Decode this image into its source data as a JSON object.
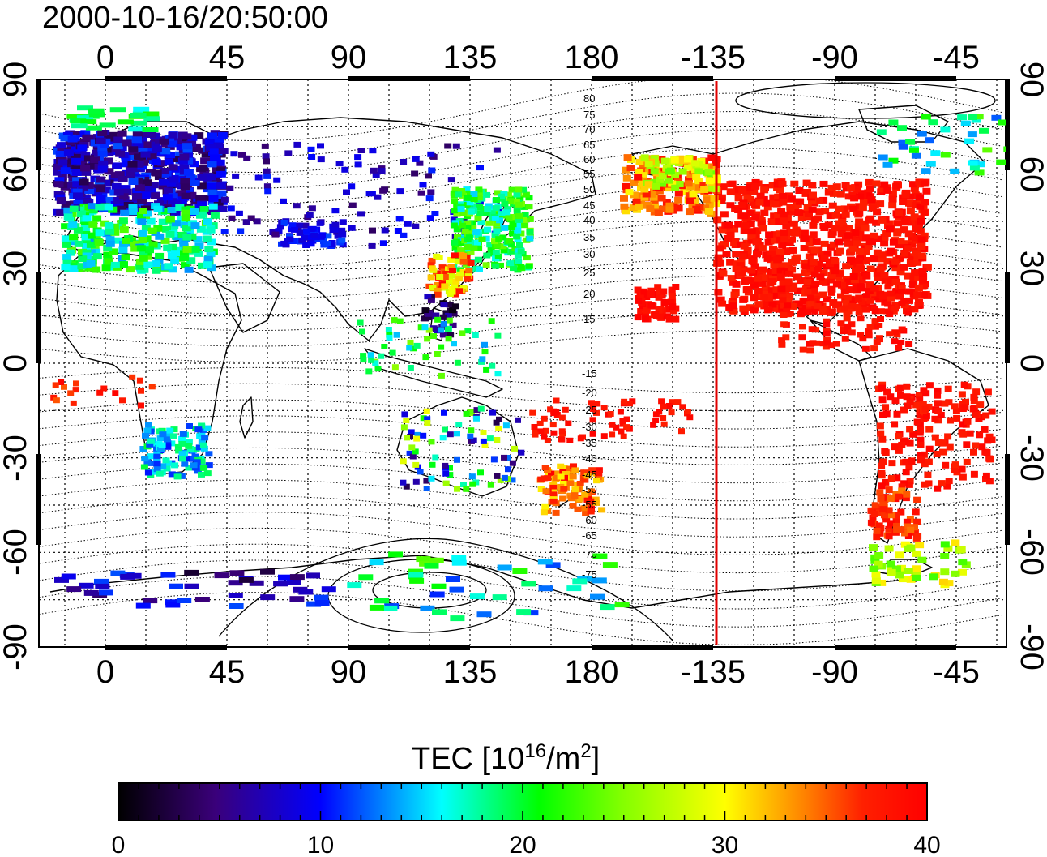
{
  "title": "2000-10-16/20:50:00",
  "map": {
    "lon_ticks_top": [
      "0",
      "45",
      "90",
      "135",
      "180",
      "-135",
      "-90",
      "-45"
    ],
    "lon_ticks_bottom": [
      "0",
      "45",
      "90",
      "135",
      "180",
      "-135",
      "-90",
      "-45"
    ],
    "lat_ticks_left": [
      "90",
      "60",
      "30",
      "0",
      "-30",
      "-60",
      "-90"
    ],
    "lat_ticks_right": [
      "90",
      "60",
      "30",
      "0",
      "-30",
      "-60",
      "-90"
    ],
    "grid": "dotted, 15 deg",
    "terminator_line_lon": -135,
    "terminator_color": "#ff0000",
    "mlat_labels_north": [
      "80",
      "75",
      "70",
      "65",
      "60",
      "55",
      "50",
      "45",
      "40",
      "35",
      "30",
      "25",
      "20",
      "15"
    ],
    "mlat_labels_south": [
      "-15",
      "-20",
      "-25",
      "-30",
      "-35",
      "-40",
      "-45",
      "-50",
      "-55",
      "-60",
      "-65",
      "-70",
      "-75"
    ]
  },
  "colorbar": {
    "title_main": "TEC  [10",
    "title_exp": "16",
    "title_mid": "/m",
    "title_exp2": "2",
    "title_end": "]",
    "min": 0,
    "max": 40,
    "ticks": [
      "0",
      "10",
      "20",
      "30",
      "40"
    ],
    "colors": [
      "#000000",
      "#400080",
      "#0000ff",
      "#00ffff",
      "#00ff00",
      "#ffff00",
      "#ff8000",
      "#ff0000"
    ]
  }
}
